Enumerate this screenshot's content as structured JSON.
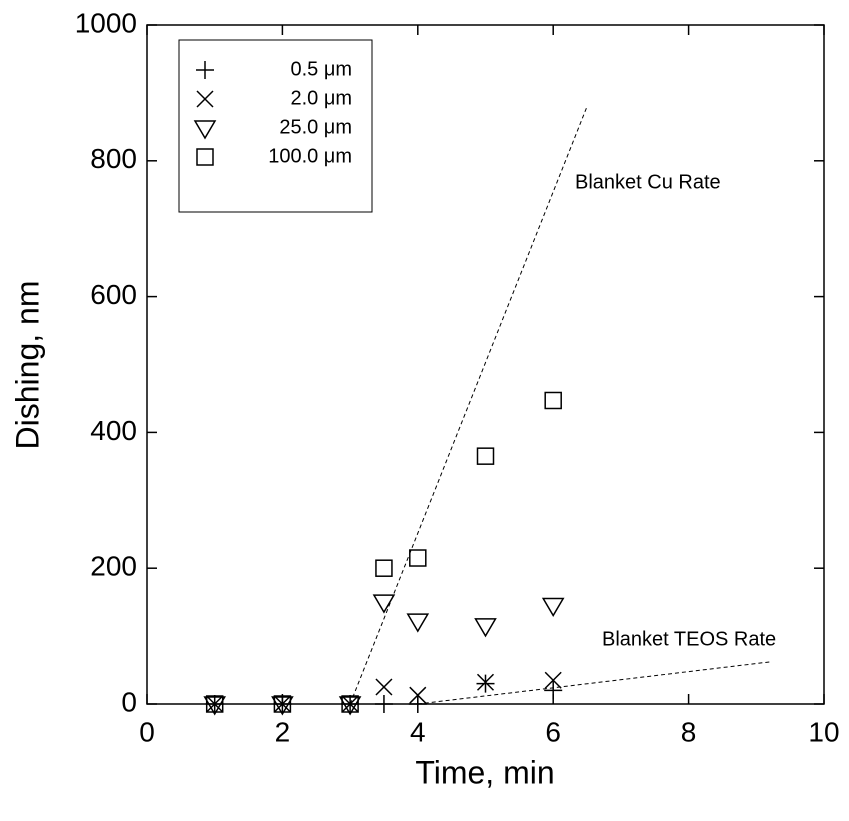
{
  "chart_data": {
    "type": "scatter",
    "x_label": "Time, min",
    "y_label": "Dishing, nm",
    "xlim": [
      0,
      10
    ],
    "ylim": [
      0,
      1000
    ],
    "xticks": [
      0,
      2,
      4,
      6,
      8,
      10
    ],
    "yticks": [
      0,
      200,
      400,
      600,
      800,
      1000
    ],
    "grid": false,
    "legend_position": "upper left",
    "series": [
      {
        "name": "0.5 μm",
        "marker": "plus",
        "color": "#000000",
        "x": [
          1,
          2,
          3,
          3.5,
          4,
          5,
          6
        ],
        "values": [
          0,
          0,
          0,
          0,
          0,
          30,
          20
        ]
      },
      {
        "name": "2.0 μm",
        "marker": "cross",
        "color": "#000000",
        "x": [
          1,
          2,
          3,
          3.5,
          4,
          5,
          6
        ],
        "values": [
          0,
          0,
          0,
          25,
          13,
          32,
          35
        ]
      },
      {
        "name": "25.0 μm",
        "marker": "triangle-down",
        "color": "#000000",
        "x": [
          1,
          2,
          3,
          3.5,
          4,
          5,
          6
        ],
        "values": [
          0,
          0,
          0,
          150,
          122,
          115,
          145
        ]
      },
      {
        "name": "100.0 μm",
        "marker": "square",
        "color": "#000000",
        "x": [
          1,
          2,
          3,
          3.5,
          4,
          5,
          6
        ],
        "values": [
          0,
          0,
          0,
          200,
          215,
          365,
          447
        ]
      }
    ],
    "reference_lines": [
      {
        "label": "Blanket Cu Rate",
        "x": [
          3,
          6.5
        ],
        "values": [
          0,
          880
        ]
      },
      {
        "label": "Blanket TEOS Rate",
        "x": [
          4,
          9.2
        ],
        "values": [
          0,
          62
        ]
      }
    ]
  }
}
